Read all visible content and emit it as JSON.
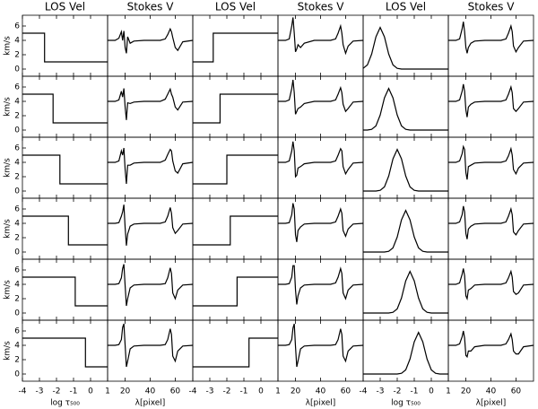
{
  "chart_data": [
    {
      "type": "line",
      "title": "LOS Vel",
      "xlabel": "log τ₅₀₀",
      "ylabel": "km/s",
      "color": "#000000",
      "xlim": [
        -4,
        1
      ],
      "xticks": [
        -4,
        -3,
        -2,
        -1,
        0,
        1
      ],
      "ylim": [
        -1,
        7.5
      ],
      "yticks": [
        0,
        2,
        4,
        6
      ],
      "series": [
        {
          "x": [
            -4,
            -2.7,
            -2.7,
            1
          ],
          "values": [
            5,
            5,
            1,
            1
          ]
        },
        {
          "x": [
            -4,
            -2.2,
            -2.2,
            1
          ],
          "values": [
            5,
            5,
            1,
            1
          ]
        },
        {
          "x": [
            -4,
            -1.8,
            -1.8,
            1
          ],
          "values": [
            5,
            5,
            1,
            1
          ]
        },
        {
          "x": [
            -4,
            -1.3,
            -1.3,
            1
          ],
          "values": [
            5,
            5,
            1,
            1
          ]
        },
        {
          "x": [
            -4,
            -0.9,
            -0.9,
            1
          ],
          "values": [
            5,
            5,
            1,
            1
          ]
        },
        {
          "x": [
            -4,
            -0.3,
            -0.3,
            1
          ],
          "values": [
            5,
            5,
            1,
            1
          ]
        }
      ]
    },
    {
      "type": "line",
      "title": "Stokes V",
      "xlabel": "λ[pixel]",
      "color": "#000000",
      "xlim": [
        6,
        74
      ],
      "xticks": [
        20,
        40,
        60
      ],
      "ylim": [
        -1,
        7.5
      ],
      "x": [
        6,
        12,
        15,
        17,
        18,
        19,
        20,
        21,
        22,
        24,
        27,
        35,
        48,
        52,
        54,
        56,
        57,
        58,
        60,
        62,
        66,
        74
      ],
      "series": [
        {
          "values": [
            4,
            4,
            4.3,
            5.2,
            4.0,
            5.3,
            3.0,
            2.2,
            4.5,
            3.6,
            3.9,
            4,
            4,
            4.2,
            4.8,
            5.6,
            5.2,
            4.4,
            3.0,
            2.6,
            3.8,
            4
          ]
        },
        {
          "values": [
            4,
            4,
            4.2,
            5.4,
            4.6,
            5.8,
            3.2,
            1.4,
            3.8,
            3.7,
            3.9,
            4,
            4,
            4.3,
            5.0,
            5.7,
            5.0,
            4.6,
            3.2,
            2.8,
            3.9,
            4
          ]
        },
        {
          "values": [
            4,
            4,
            4.2,
            5.6,
            5.0,
            6.0,
            3.0,
            1.0,
            3.6,
            3.6,
            3.9,
            4,
            4,
            4.3,
            5.1,
            5.8,
            5.6,
            4.2,
            2.8,
            2.5,
            3.8,
            4
          ]
        },
        {
          "values": [
            4,
            4,
            4.1,
            5.0,
            5.6,
            6.6,
            3.4,
            0.9,
            2.5,
            3.6,
            3.9,
            4,
            4,
            4.2,
            5.0,
            6.2,
            5.4,
            3.4,
            2.6,
            3.0,
            3.9,
            4
          ]
        },
        {
          "values": [
            4,
            4,
            4.1,
            4.9,
            6.2,
            6.8,
            3.8,
            1.0,
            2.0,
            3.5,
            3.9,
            4,
            4,
            4.1,
            4.9,
            6.3,
            5.5,
            2.8,
            2.0,
            3.2,
            3.9,
            4
          ]
        },
        {
          "values": [
            4,
            4,
            4.1,
            4.8,
            6.5,
            7.0,
            4.0,
            1.0,
            1.8,
            3.5,
            3.9,
            4,
            4,
            4.1,
            4.8,
            6.3,
            5.5,
            2.5,
            1.8,
            3.2,
            3.9,
            4
          ]
        }
      ]
    },
    {
      "type": "line",
      "title": "LOS Vel",
      "color": "#000000",
      "xlim": [
        -4,
        1
      ],
      "xticks": [
        -4,
        -3,
        -2,
        -1,
        0,
        1
      ],
      "ylim": [
        -1,
        7.5
      ],
      "series": [
        {
          "x": [
            -4,
            -2.8,
            -2.8,
            1
          ],
          "values": [
            1,
            1,
            5,
            5
          ]
        },
        {
          "x": [
            -4,
            -2.4,
            -2.4,
            1
          ],
          "values": [
            1,
            1,
            5,
            5
          ]
        },
        {
          "x": [
            -4,
            -2.0,
            -2.0,
            1
          ],
          "values": [
            1,
            1,
            5,
            5
          ]
        },
        {
          "x": [
            -4,
            -1.8,
            -1.8,
            1
          ],
          "values": [
            1,
            1,
            5,
            5
          ]
        },
        {
          "x": [
            -4,
            -1.4,
            -1.4,
            1
          ],
          "values": [
            1,
            1,
            5,
            5
          ]
        },
        {
          "x": [
            -4,
            -0.7,
            -0.7,
            1
          ],
          "values": [
            1,
            1,
            5,
            5
          ]
        }
      ]
    },
    {
      "type": "line",
      "title": "Stokes V",
      "xlabel": "λ[pixel]",
      "color": "#000000",
      "xlim": [
        6,
        74
      ],
      "xticks": [
        20,
        40,
        60
      ],
      "ylim": [
        -1,
        7.5
      ],
      "x": [
        6,
        12,
        15,
        17,
        18,
        19,
        20,
        21,
        22,
        24,
        27,
        35,
        48,
        52,
        54,
        56,
        57,
        58,
        60,
        62,
        66,
        74
      ],
      "series": [
        {
          "values": [
            4,
            4,
            4.2,
            6.0,
            7.2,
            5.0,
            2.4,
            2.8,
            3.4,
            3.0,
            3.6,
            4,
            4,
            4.2,
            5.0,
            6.0,
            5.0,
            3.4,
            2.2,
            3.2,
            3.9,
            4
          ]
        },
        {
          "values": [
            4,
            4,
            4.2,
            5.8,
            7.0,
            5.2,
            2.2,
            2.6,
            3.0,
            3.2,
            3.7,
            4,
            4,
            4.2,
            5.0,
            5.9,
            5.2,
            3.6,
            2.6,
            3.0,
            3.9,
            4
          ]
        },
        {
          "values": [
            4,
            4,
            4.2,
            5.6,
            6.9,
            5.6,
            2.0,
            2.2,
            3.2,
            3.4,
            3.8,
            4,
            4,
            4.2,
            5.0,
            5.9,
            5.6,
            3.4,
            2.4,
            3.0,
            3.9,
            4
          ]
        },
        {
          "values": [
            4,
            4,
            4.1,
            5.2,
            6.8,
            6.0,
            2.4,
            1.4,
            3.0,
            3.5,
            3.9,
            4,
            4,
            4.2,
            5.0,
            6.0,
            5.4,
            3.0,
            2.2,
            3.2,
            3.9,
            4
          ]
        },
        {
          "values": [
            4,
            4,
            4.1,
            5.0,
            6.6,
            6.6,
            3.2,
            1.2,
            2.4,
            3.5,
            3.9,
            4,
            4,
            4.2,
            5.0,
            6.2,
            5.5,
            2.8,
            2.0,
            3.2,
            3.9,
            4
          ]
        },
        {
          "values": [
            4,
            4,
            4.1,
            4.8,
            6.4,
            7.0,
            3.8,
            1.0,
            1.8,
            3.5,
            3.9,
            4,
            4,
            4.1,
            4.8,
            6.3,
            5.5,
            2.5,
            1.8,
            3.2,
            3.9,
            4
          ]
        }
      ]
    },
    {
      "type": "line",
      "title": "LOS Vel",
      "xlabel": "log τ₅₀₀",
      "color": "#000000",
      "xlim": [
        -4,
        1
      ],
      "xticks": [
        -4,
        -3,
        -2,
        -1,
        0,
        1
      ],
      "ylim": [
        -1,
        7.5
      ],
      "x": [
        -4,
        -3.75,
        -3.5,
        -3.25,
        -3,
        -2.75,
        -2.5,
        -2.25,
        -2,
        -1.75,
        -1.5,
        -1.25,
        -1,
        -0.75,
        -0.5,
        -0.25,
        0,
        0.25,
        0.5,
        0.75,
        1
      ],
      "series": [
        {
          "values": [
            0.1,
            0.58,
            2.09,
            4.49,
            5.8,
            4.49,
            2.09,
            0.58,
            0.1,
            0,
            0,
            0,
            0,
            0,
            0,
            0,
            0,
            0,
            0,
            0,
            0
          ]
        },
        {
          "values": [
            0,
            0,
            0.1,
            0.58,
            2.09,
            4.49,
            5.8,
            4.49,
            2.09,
            0.58,
            0.1,
            0,
            0,
            0,
            0,
            0,
            0,
            0,
            0,
            0,
            0
          ]
        },
        {
          "values": [
            0,
            0,
            0,
            0,
            0.1,
            0.58,
            2.09,
            4.49,
            5.8,
            4.49,
            2.09,
            0.58,
            0.1,
            0,
            0,
            0,
            0,
            0,
            0,
            0,
            0
          ]
        },
        {
          "values": [
            0,
            0,
            0,
            0,
            0,
            0,
            0.1,
            0.58,
            2.09,
            4.49,
            5.8,
            4.49,
            2.09,
            0.58,
            0.1,
            0,
            0,
            0,
            0,
            0,
            0
          ]
        },
        {
          "values": [
            0,
            0,
            0,
            0,
            0,
            0,
            0,
            0.1,
            0.58,
            2.09,
            4.49,
            5.8,
            4.49,
            2.09,
            0.58,
            0.1,
            0,
            0,
            0,
            0,
            0
          ]
        },
        {
          "values": [
            0,
            0,
            0,
            0,
            0,
            0,
            0,
            0,
            0,
            0.1,
            0.58,
            2.09,
            4.49,
            5.8,
            4.49,
            2.09,
            0.58,
            0.1,
            0,
            0,
            0
          ]
        }
      ]
    },
    {
      "type": "line",
      "title": "Stokes V",
      "xlabel": "λ[pixel]",
      "color": "#000000",
      "xlim": [
        6,
        74
      ],
      "xticks": [
        20,
        40,
        60
      ],
      "ylim": [
        -1,
        7.5
      ],
      "x": [
        6,
        12,
        15,
        17,
        18,
        19,
        20,
        21,
        22,
        24,
        27,
        35,
        48,
        52,
        54,
        56,
        57,
        58,
        60,
        62,
        66,
        74
      ],
      "series": [
        {
          "values": [
            4,
            4,
            4.2,
            5.6,
            6.6,
            5.2,
            3.0,
            2.2,
            3.0,
            3.6,
            3.9,
            4,
            4,
            4.2,
            5.0,
            6.0,
            5.2,
            3.2,
            2.4,
            3.0,
            3.9,
            4
          ]
        },
        {
          "values": [
            4,
            4,
            4.2,
            5.4,
            6.4,
            5.4,
            2.8,
            1.8,
            3.2,
            3.6,
            3.9,
            4,
            4,
            4.2,
            5.0,
            6.0,
            5.2,
            3.0,
            2.6,
            3.0,
            3.9,
            4
          ]
        },
        {
          "values": [
            4,
            4,
            4.2,
            5.2,
            6.2,
            5.8,
            2.6,
            1.6,
            3.4,
            3.6,
            3.9,
            4,
            4,
            4.2,
            4.9,
            5.9,
            5.0,
            3.0,
            2.4,
            3.2,
            3.9,
            4
          ]
        },
        {
          "values": [
            4,
            4,
            4.2,
            5.2,
            6.4,
            5.6,
            2.6,
            1.8,
            3.2,
            3.6,
            3.9,
            4,
            4,
            4.2,
            5.0,
            6.0,
            5.2,
            2.8,
            2.4,
            3.0,
            3.9,
            4
          ]
        },
        {
          "values": [
            4,
            4,
            4.2,
            5.4,
            6.2,
            5.2,
            2.4,
            2.0,
            3.2,
            3.4,
            3.9,
            4,
            4,
            4.2,
            4.9,
            5.8,
            5.0,
            3.0,
            2.6,
            2.8,
            3.9,
            4
          ]
        },
        {
          "values": [
            4,
            4,
            4.2,
            5.2,
            6.0,
            5.0,
            2.6,
            2.4,
            3.2,
            3.2,
            3.8,
            4,
            4,
            4.2,
            4.8,
            5.6,
            4.8,
            3.2,
            2.8,
            2.8,
            3.8,
            4
          ]
        }
      ]
    }
  ]
}
